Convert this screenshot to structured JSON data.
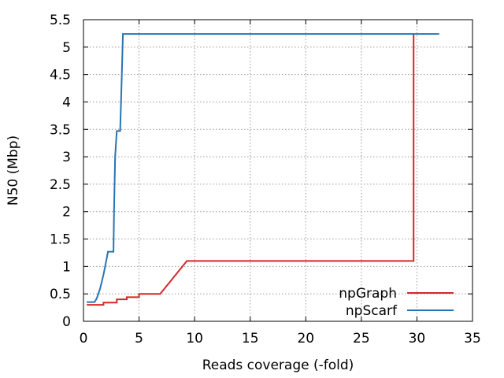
{
  "chart_data": {
    "type": "line",
    "xlabel": "Reads coverage (-fold)",
    "ylabel": "N50 (Mbp)",
    "xlim": [
      0,
      35
    ],
    "ylim": [
      0,
      5.5
    ],
    "xticks": [
      0,
      5,
      10,
      15,
      20,
      25,
      30,
      35
    ],
    "xtick_labels": [
      "0",
      "5",
      "10",
      "15",
      "20",
      "25",
      "30",
      "35"
    ],
    "yticks": [
      0,
      0.5,
      1,
      1.5,
      2,
      2.5,
      3,
      3.5,
      4,
      4.5,
      5,
      5.5
    ],
    "ytick_labels": [
      "0",
      "0.5",
      "1",
      "1.5",
      "2",
      "2.5",
      "3",
      "3.5",
      "4",
      "4.5",
      "5",
      "5.5"
    ],
    "grid": true,
    "legend_position": "bottom-right",
    "series": [
      {
        "name": "npGraph",
        "color": "#d62728",
        "points": [
          [
            0.3,
            0.3
          ],
          [
            1.8,
            0.3
          ],
          [
            1.8,
            0.34
          ],
          [
            3.0,
            0.34
          ],
          [
            3.0,
            0.4
          ],
          [
            3.9,
            0.4
          ],
          [
            3.9,
            0.44
          ],
          [
            5.0,
            0.44
          ],
          [
            5.0,
            0.5
          ],
          [
            6.9,
            0.5
          ],
          [
            9.3,
            1.1
          ],
          [
            29.7,
            1.1
          ],
          [
            29.7,
            5.24
          ]
        ]
      },
      {
        "name": "npScarf",
        "color": "#2874b4",
        "points": [
          [
            0.3,
            0.35
          ],
          [
            1.0,
            0.35
          ],
          [
            1.2,
            0.42
          ],
          [
            1.5,
            0.6
          ],
          [
            1.8,
            0.85
          ],
          [
            2.0,
            1.05
          ],
          [
            2.2,
            1.27
          ],
          [
            2.7,
            1.27
          ],
          [
            2.75,
            2.0
          ],
          [
            2.85,
            3.0
          ],
          [
            3.0,
            3.47
          ],
          [
            3.3,
            3.47
          ],
          [
            3.45,
            4.5
          ],
          [
            3.55,
            5.24
          ],
          [
            32.0,
            5.24
          ]
        ]
      }
    ]
  }
}
